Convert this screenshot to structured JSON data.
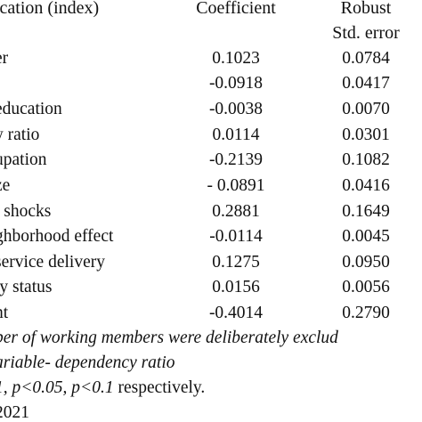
{
  "table": {
    "headers": {
      "variable": "ication (index)",
      "coefficient": "Coefficient",
      "robust_se_line1": "Robust",
      "robust_se_line2": "Std. error"
    },
    "rows": [
      {
        "label": "er",
        "coefficient": "0.1023",
        "std_error": "0.0784"
      },
      {
        "label": "",
        "coefficient": "-0.0918",
        "std_error": "0.0417"
      },
      {
        "label": " education",
        "coefficient": "-0.0038",
        "std_error": "0.0070"
      },
      {
        "label": "y ratio",
        "coefficient": "0.0114",
        "std_error": "0.0301"
      },
      {
        "label": "upation",
        "coefficient": "-0.2139",
        "std_error": "0.1082"
      },
      {
        "label": "ze",
        "coefficient": "- 0.0891",
        "std_error": "0.0416"
      },
      {
        "label": "/ shocks",
        "coefficient": "0.2881",
        "std_error": "0.1649"
      },
      {
        "label": "ghborhood effect",
        "coefficient": "-0.0114",
        "std_error": "0.0045"
      },
      {
        "label": "service delivery",
        "coefficient": "0.1275",
        "std_error": "0.0950"
      },
      {
        "label": "ty status",
        "coefficient": "0.0156",
        "std_error": "0.0056"
      },
      {
        "label": "nt",
        "coefficient": "-0.4014",
        "std_error": "0.2790"
      }
    ]
  },
  "footnotes": {
    "line1": "ber of working members were deliberately exclud",
    "line2": "ariable- dependency ratio",
    "line3_part1": "1, p<0.05, p<0.1",
    "line3_part2": " respectively.",
    "line4": " 2021"
  }
}
